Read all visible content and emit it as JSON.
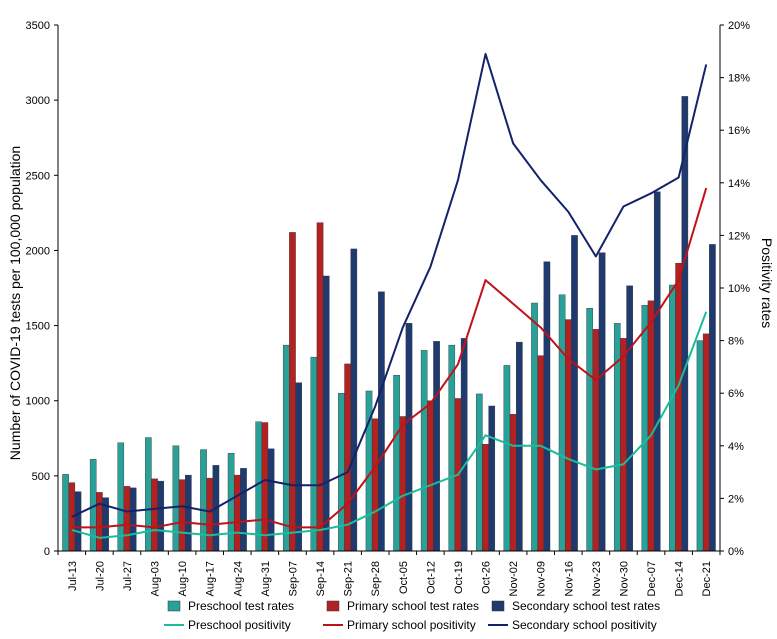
{
  "chart_data": {
    "type": "bar",
    "categories": [
      "Jul-13",
      "Jul-20",
      "Jul-27",
      "Aug-03",
      "Aug-10",
      "Aug-17",
      "Aug-24",
      "Aug-31",
      "Sep-07",
      "Sep-14",
      "Sep-21",
      "Sep-28",
      "Oct-05",
      "Oct-12",
      "Oct-19",
      "Oct-26",
      "Nov-02",
      "Nov-09",
      "Nov-16",
      "Nov-23",
      "Nov-30",
      "Dec-07",
      "Dec-14",
      "Dec-21"
    ],
    "series": [
      {
        "name": "Preschool test rates",
        "type": "bar",
        "axis": "left",
        "color": "#2aa198",
        "values": [
          510,
          610,
          720,
          755,
          700,
          675,
          650,
          860,
          1370,
          1290,
          1050,
          1065,
          1170,
          1335,
          1370,
          1045,
          1235,
          1650,
          1705,
          1615,
          1515,
          1635,
          1770,
          1400
        ]
      },
      {
        "name": "Primary school test rates",
        "type": "bar",
        "axis": "left",
        "color": "#b22222",
        "values": [
          455,
          390,
          430,
          480,
          475,
          485,
          505,
          855,
          2120,
          2185,
          1245,
          880,
          895,
          1000,
          1015,
          710,
          910,
          1300,
          1540,
          1475,
          1415,
          1665,
          1915,
          1445
        ]
      },
      {
        "name": "Secondary school test rates",
        "type": "bar",
        "axis": "left",
        "color": "#1f3a6e",
        "values": [
          395,
          355,
          420,
          465,
          505,
          570,
          550,
          680,
          1120,
          1830,
          2010,
          1725,
          1515,
          1395,
          1415,
          965,
          1390,
          1925,
          2100,
          1985,
          1765,
          2390,
          3025,
          2040
        ]
      },
      {
        "name": "Preschool positivity",
        "type": "line",
        "axis": "right",
        "color": "#1abc9c",
        "values": [
          0.8,
          0.5,
          0.6,
          0.8,
          0.7,
          0.6,
          0.7,
          0.6,
          0.7,
          0.8,
          1.0,
          1.5,
          2.1,
          2.5,
          2.9,
          4.4,
          4.0,
          4.0,
          3.5,
          3.1,
          3.3,
          4.4,
          6.3,
          9.1
        ]
      },
      {
        "name": "Primary school positivity",
        "type": "line",
        "axis": "right",
        "color": "#c0121a",
        "values": [
          0.9,
          0.9,
          1.0,
          0.9,
          1.1,
          1.0,
          1.1,
          1.2,
          0.9,
          0.9,
          1.8,
          3.2,
          4.8,
          5.6,
          7.1,
          10.3,
          9.4,
          8.5,
          7.3,
          6.5,
          7.4,
          8.7,
          10.3,
          13.8
        ]
      },
      {
        "name": "Secondary school positivity",
        "type": "line",
        "axis": "right",
        "color": "#14226b",
        "values": [
          1.3,
          1.8,
          1.5,
          1.6,
          1.7,
          1.5,
          2.1,
          2.7,
          2.5,
          2.5,
          3.0,
          5.5,
          8.5,
          10.8,
          14.1,
          18.9,
          15.5,
          14.1,
          12.9,
          11.2,
          13.1,
          13.6,
          14.2,
          18.5
        ]
      }
    ],
    "ylabel": "Number of COVID-19 tests per 100,000 population",
    "y2label": "Positivity rates",
    "ylim": [
      0,
      3500
    ],
    "yticks": [
      0,
      500,
      1000,
      1500,
      2000,
      2500,
      3000,
      3500
    ],
    "ytick_labels": [
      "0",
      "500",
      "1000",
      "1500",
      "2000",
      "2500",
      "3000",
      "3500"
    ],
    "y2lim": [
      0,
      20
    ],
    "y2ticks": [
      0,
      2,
      4,
      6,
      8,
      10,
      12,
      14,
      16,
      18,
      20
    ],
    "y2tick_labels": [
      "0%",
      "2%",
      "4%",
      "6%",
      "8%",
      "10%",
      "12%",
      "14%",
      "16%",
      "18%",
      "20%"
    ],
    "grid": false,
    "legend_position": "bottom"
  }
}
